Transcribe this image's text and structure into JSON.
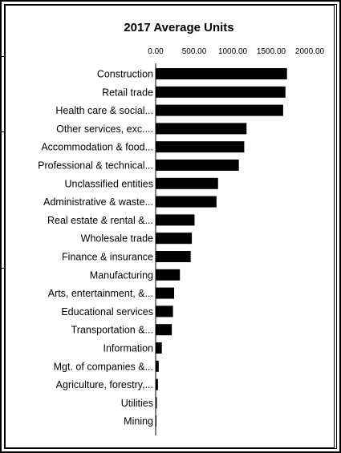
{
  "chart_data": {
    "type": "bar",
    "orientation": "horizontal",
    "title": "2017 Average Units",
    "xlabel": "",
    "ylabel": "",
    "xlim": [
      0,
      2000
    ],
    "ticks": [
      "0.00",
      "500.00",
      "1000.00",
      "1500.00",
      "2000.00"
    ],
    "tick_values": [
      0,
      500,
      1000,
      1500,
      2000
    ],
    "grid": false,
    "legend": "none",
    "bar_color": "#000000",
    "categories": [
      "Construction",
      "Retail trade",
      "Health care & social...",
      "Other services, exc....",
      "Accommodation & food...",
      "Professional & technical...",
      "Unclassified entities",
      "Administrative & waste...",
      "Real estate & rental &...",
      "Wholesale trade",
      "Finance & insurance",
      "Manufacturing",
      "Arts, entertainment, &...",
      "Educational services",
      "Transportation &...",
      "Information",
      "Mgt. of companies &...",
      "Agriculture, forestry,...",
      "Utilities",
      "Mining"
    ],
    "values": [
      1705,
      1685,
      1655,
      1180,
      1150,
      1080,
      810,
      790,
      505,
      470,
      455,
      315,
      240,
      225,
      210,
      80,
      40,
      30,
      15,
      5
    ]
  }
}
